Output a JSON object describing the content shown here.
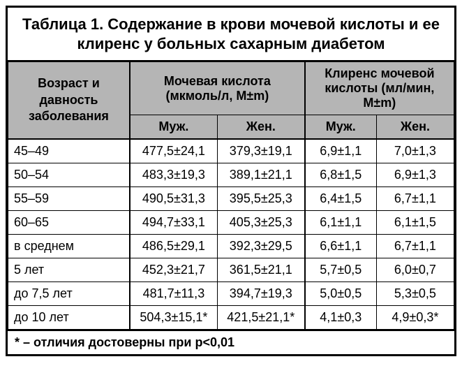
{
  "title": "Таблица 1. Содержание в крови мочевой кислоты и ее клиренс у больных сахарным диабетом",
  "headers": {
    "age": "Возраст и давность заболевания",
    "uric_acid": "Мочевая кислота (мкмоль/л, M±m)",
    "clearance": "Клиренс мочевой кислоты (мл/мин, M±m)",
    "male": "Муж.",
    "female": "Жен."
  },
  "rows": [
    {
      "label": "45–49",
      "ua_m": "477,5±24,1",
      "ua_f": "379,3±19,1",
      "cl_m": "6,9±1,1",
      "cl_f": "7,0±1,3"
    },
    {
      "label": "50–54",
      "ua_m": "483,3±19,3",
      "ua_f": "389,1±21,1",
      "cl_m": "6,8±1,5",
      "cl_f": "6,9±1,3"
    },
    {
      "label": "55–59",
      "ua_m": "490,5±31,3",
      "ua_f": "395,5±25,3",
      "cl_m": "6,4±1,5",
      "cl_f": "6,7±1,1"
    },
    {
      "label": "60–65",
      "ua_m": "494,7±33,1",
      "ua_f": "405,3±25,3",
      "cl_m": "6,1±1,1",
      "cl_f": "6,1±1,5"
    },
    {
      "label": "в среднем",
      "ua_m": "486,5±29,1",
      "ua_f": "392,3±29,5",
      "cl_m": "6,6±1,1",
      "cl_f": "6,7±1,1"
    },
    {
      "label": "5 лет",
      "ua_m": "452,3±21,7",
      "ua_f": "361,5±21,1",
      "cl_m": "5,7±0,5",
      "cl_f": "6,0±0,7"
    },
    {
      "label": "до 7,5 лет",
      "ua_m": "481,7±11,3",
      "ua_f": "394,7±19,3",
      "cl_m": "5,0±0,5",
      "cl_f": "5,3±0,5"
    },
    {
      "label": "до 10 лет",
      "ua_m": "504,3±15,1*",
      "ua_f": "421,5±21,1*",
      "cl_m": "4,1±0,3",
      "cl_f": "4,9±0,3*"
    }
  ],
  "footnote": "* – отличия достоверны при p<0,01",
  "style": {
    "header_bg": "#b5b5b5",
    "border_color": "#000000",
    "font_size_title": 22,
    "font_size_body": 18
  }
}
